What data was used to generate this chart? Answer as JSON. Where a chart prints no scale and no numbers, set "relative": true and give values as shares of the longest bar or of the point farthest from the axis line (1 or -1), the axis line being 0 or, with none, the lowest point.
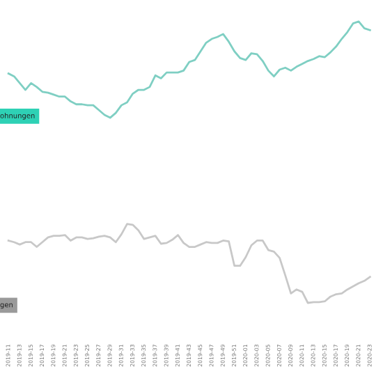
{
  "chart_data": [
    {
      "type": "line",
      "relative": true,
      "tick_labels": false,
      "legend": false,
      "categories": [
        "2019-11",
        null,
        "2019-13",
        null,
        "2019-15",
        null,
        "2019-17",
        null,
        "2019-19",
        null,
        "2019-21",
        null,
        "2019-23",
        null,
        "2019-25",
        null,
        "2019-27",
        null,
        "2019-29",
        null,
        "2019-31",
        null,
        "2019-33",
        null,
        "2019-35",
        null,
        "2019-37",
        null,
        "2019-39",
        null,
        "2019-41",
        null,
        "2019-43",
        null,
        "2019-45",
        null,
        "2019-47",
        null,
        "2019-49",
        null,
        "2019-51",
        null,
        "2020-01",
        null,
        "2020-03",
        null,
        "2020-05",
        null,
        "2020-07",
        null,
        "2020-09",
        null,
        "2020-11",
        null,
        "2020-13",
        null,
        "2020-15",
        null,
        "2020-17",
        null,
        "2020-19",
        null,
        "2020-21",
        null,
        "2020-23"
      ],
      "series": [
        {
          "name": "ohnungen",
          "color": "#7fcfc3",
          "values": [
            0.46,
            0.43,
            0.36,
            0.29,
            0.36,
            0.32,
            0.27,
            0.26,
            0.24,
            0.22,
            0.22,
            0.17,
            0.14,
            0.14,
            0.13,
            0.13,
            0.08,
            0.03,
            0,
            0.05,
            0.13,
            0.16,
            0.25,
            0.29,
            0.29,
            0.32,
            0.44,
            0.41,
            0.47,
            0.47,
            0.47,
            0.49,
            0.58,
            0.6,
            0.69,
            0.78,
            0.82,
            0.84,
            0.87,
            0.79,
            0.69,
            0.62,
            0.6,
            0.67,
            0.66,
            0.59,
            0.49,
            0.43,
            0.5,
            0.52,
            0.49,
            0.53,
            0.56,
            0.59,
            0.61,
            0.64,
            0.63,
            0.68,
            0.74,
            0.82,
            0.89,
            0.98,
            1,
            0.93,
            0.91
          ]
        }
      ]
    },
    {
      "type": "line",
      "relative": true,
      "tick_labels": "x",
      "legend": false,
      "categories": [
        "2019-11",
        null,
        "2019-13",
        null,
        "2019-15",
        null,
        "2019-17",
        null,
        "2019-19",
        null,
        "2019-21",
        null,
        "2019-23",
        null,
        "2019-25",
        null,
        "2019-27",
        null,
        "2019-29",
        null,
        "2019-31",
        null,
        "2019-33",
        null,
        "2019-35",
        null,
        "2019-37",
        null,
        "2019-39",
        null,
        "2019-41",
        null,
        "2019-43",
        null,
        "2019-45",
        null,
        "2019-47",
        null,
        "2019-49",
        null,
        "2019-51",
        null,
        "2020-01",
        null,
        "2020-03",
        null,
        "2020-05",
        null,
        "2020-07",
        null,
        "2020-09",
        null,
        "2020-11",
        null,
        "2020-13",
        null,
        "2020-15",
        null,
        "2020-17",
        null,
        "2020-19",
        null,
        "2020-21",
        null,
        "2020-23"
      ],
      "series": [
        {
          "name": "gen",
          "color": "#c8c8c8",
          "values": [
            0.79,
            0.77,
            0.74,
            0.77,
            0.77,
            0.71,
            0.77,
            0.83,
            0.85,
            0.85,
            0.86,
            0.79,
            0.83,
            0.83,
            0.81,
            0.82,
            0.84,
            0.85,
            0.83,
            0.77,
            0.87,
            1,
            0.99,
            0.92,
            0.81,
            0.83,
            0.85,
            0.75,
            0.76,
            0.8,
            0.86,
            0.76,
            0.71,
            0.71,
            0.74,
            0.77,
            0.76,
            0.76,
            0.79,
            0.78,
            0.47,
            0.47,
            0.58,
            0.73,
            0.79,
            0.79,
            0.67,
            0.65,
            0.57,
            0.35,
            0.12,
            0.17,
            0.14,
            0,
            0.01,
            0.01,
            0.02,
            0.08,
            0.11,
            0.12,
            0.17,
            0.21,
            0.25,
            0.28,
            0.33
          ]
        }
      ]
    }
  ]
}
